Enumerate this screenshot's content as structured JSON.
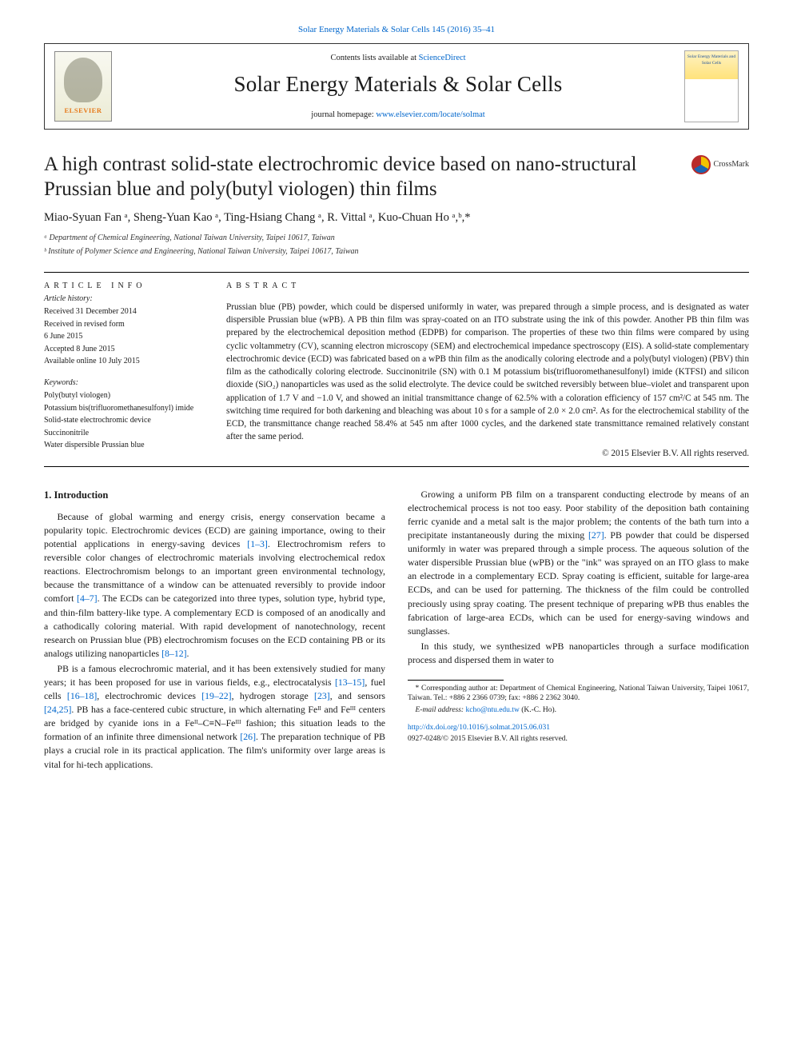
{
  "header": {
    "topline": "Solar Energy Materials & Solar Cells 145 (2016) 35–41",
    "contents_prefix": "Contents lists available at ",
    "contents_link": "ScienceDirect",
    "journal_name": "Solar Energy Materials & Solar Cells",
    "homepage_prefix": "journal homepage: ",
    "homepage_link": "www.elsevier.com/locate/solmat",
    "elsevier_word": "ELSEVIER",
    "cover_text": "Solar Energy Materials and Solar Cells"
  },
  "crossmark_label": "CrossMark",
  "title": "A high contrast solid-state electrochromic device based on nano-structural Prussian blue and poly(butyl viologen) thin films",
  "authors_html": "Miao-Syuan Fan ᵃ, Sheng-Yuan Kao ᵃ, Ting-Hsiang Chang ᵃ, R. Vittal ᵃ, Kuo-Chuan Ho ᵃ,ᵇ,*",
  "affiliations": {
    "a": "ᵃ Department of Chemical Engineering, National Taiwan University, Taipei 10617, Taiwan",
    "b": "ᵇ Institute of Polymer Science and Engineering, National Taiwan University, Taipei 10617, Taiwan"
  },
  "info": {
    "heading": "ARTICLE INFO",
    "history_heading": "Article history:",
    "history": [
      "Received 31 December 2014",
      "Received in revised form",
      "6 June 2015",
      "Accepted 8 June 2015",
      "Available online 10 July 2015"
    ],
    "keywords_heading": "Keywords:",
    "keywords": [
      "Poly(butyl viologen)",
      "Potassium bis(trifluoromethanesulfonyl) imide",
      "Solid-state electrochromic device",
      "Succinonitrile",
      "Water dispersible Prussian blue"
    ]
  },
  "abstract": {
    "heading": "ABSTRACT",
    "text": "Prussian blue (PB) powder, which could be dispersed uniformly in water, was prepared through a simple process, and is designated as water dispersible Prussian blue (wPB). A PB thin film was spray-coated on an ITO substrate using the ink of this powder. Another PB thin film was prepared by the electrochemical deposition method (EDPB) for comparison. The properties of these two thin films were compared by using cyclic voltammetry (CV), scanning electron microscopy (SEM) and electrochemical impedance spectroscopy (EIS). A solid-state complementary electrochromic device (ECD) was fabricated based on a wPB thin film as the anodically coloring electrode and a poly(butyl viologen) (PBV) thin film as the cathodically coloring electrode. Succinonitrile (SN) with 0.1 M potassium bis(trifluoromethanesulfonyl) imide (KTFSI) and silicon dioxide (SiO₂) nanoparticles was used as the solid electrolyte. The device could be switched reversibly between blue–violet and transparent upon application of 1.7 V and −1.0 V, and showed an initial transmittance change of 62.5% with a coloration efficiency of 157 cm²/C at 545 nm. The switching time required for both darkening and bleaching was about 10 s for a sample of 2.0 × 2.0 cm². As for the electrochemical stability of the ECD, the transmittance change reached 58.4% at 545 nm after 1000 cycles, and the darkened state transmittance remained relatively constant after the same period.",
    "copyright": "© 2015 Elsevier B.V. All rights reserved."
  },
  "body": {
    "section_heading": "1.  Introduction",
    "p1_a": "Because of global warming and energy crisis, energy conservation became a popularity topic. Electrochromic devices (ECD) are gaining importance, owing to their potential applications in energy-saving devices ",
    "p1_ref1": "[1–3]",
    "p1_b": ". Electrochromism refers to reversible color changes of electrochromic materials involving electrochemical redox reactions. Electrochromism belongs to an important green environmental technology, because the transmittance of a window can be attenuated reversibly to provide indoor comfort ",
    "p1_ref2": "[4–7]",
    "p1_c": ". The ECDs can be categorized into three types, solution type, hybrid type, and thin-film battery-like type. A complementary ECD is composed of an anodically and a cathodically coloring material. With rapid development of nanotechnology, recent research on Prussian blue (PB) electrochromism focuses on the ECD containing PB or its analogs utilizing nanoparticles ",
    "p1_ref3": "[8–12]",
    "p1_d": ".",
    "p2_a": "PB is a famous elecrochromic material, and it has been extensively studied for many years; it has been proposed for use in various fields, e.g., electrocatalysis ",
    "p2_ref1": "[13–15]",
    "p2_b": ", fuel cells ",
    "p2_ref2": "[16–18]",
    "p2_c": ", electrochromic devices ",
    "p2_ref3": "[19–22]",
    "p2_d": ", hydrogen storage ",
    "p2_ref4": "[23]",
    "p2_e": ", and sensors ",
    "p2_ref5": "[24,25]",
    "p2_f": ". PB has a face-centered cubic structure, in which alternating Feᴵᴵ and Feᴵᴵᴵ centers are bridged by cyanide ions in a Feᴵᴵ–C≡N–Feᴵᴵᴵ fashion; this situation leads to the formation of an infinite three dimensional network ",
    "p2_ref6": "[26]",
    "p2_g": ". The preparation technique of PB plays a crucial role in its practical application. The film's uniformity over large areas is vital for hi-tech applications.",
    "p3_a": "Growing a uniform PB film on a transparent conducting electrode by means of an electrochemical process is not too easy. Poor stability of the deposition bath containing ferric cyanide and a metal salt is the major problem; the contents of the bath turn into a precipitate instantaneously during the mixing ",
    "p3_ref1": "[27]",
    "p3_b": ". PB powder that could be dispersed uniformly in water was prepared through a simple process. The aqueous solution of the water dispersible Prussian blue (wPB) or the \"ink\" was sprayed on an ITO glass to make an electrode in a complementary ECD. Spray coating is efficient, suitable for large-area ECDs, and can be used for pat­terning. The thickness of the film could be controlled preciously using spray coating. The present technique of preparing wPB thus enables the fabrication of large-area ECDs, which can be used for energy-saving windows and sunglasses.",
    "p4": "In this study, we synthesized wPB nanoparticles through a surface modification process and dispersed them in water to"
  },
  "footnotes": {
    "corr": "* Corresponding author at: Department of Chemical Engineering, National Taiwan University, Taipei 10617, Taiwan. Tel.: +886 2 2366 0739; fax: +886 2 2362 3040.",
    "email_label": "E-mail address: ",
    "email": "kcho@ntu.edu.tw",
    "email_suffix": " (K.-C. Ho)."
  },
  "doi": {
    "url": "http://dx.doi.org/10.1016/j.solmat.2015.06.031",
    "issn": "0927-0248/© 2015 Elsevier B.V. All rights reserved."
  },
  "colors": {
    "link": "#0066cc",
    "elsevier_orange": "#e67817",
    "text": "#1a1a1a"
  }
}
